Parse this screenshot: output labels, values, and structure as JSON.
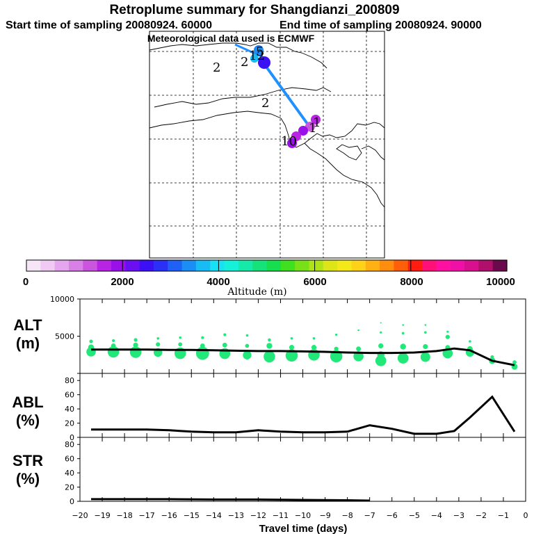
{
  "header": {
    "title": "Retroplume summary for Shangdianzi_200809",
    "start": "Start time of sampling 20080924. 60000",
    "end": "End time of sampling 20080924. 90000",
    "met": "Meteorological data used is ECMWF"
  },
  "colors": {
    "alt_dots": "#22e87a",
    "line": "#000000",
    "track": "#1e90ff",
    "altitude_scale": [
      "#f6e4f7",
      "#efcaf2",
      "#e4a6ec",
      "#d880e6",
      "#cc55e0",
      "#b824e4",
      "#9910e8",
      "#6a10f0",
      "#3c10f5",
      "#2a30f5",
      "#1f60f5",
      "#1b8ef5",
      "#18bcf5",
      "#18e0f5",
      "#17f0d8",
      "#16eaa8",
      "#15e27a",
      "#16de4e",
      "#3ee020",
      "#78e018",
      "#aee318",
      "#dde418",
      "#f5e81a",
      "#ffd21a",
      "#ffb012",
      "#ff8d0e",
      "#ff5e0a",
      "#ff1c10",
      "#ff1078",
      "#ff10a0",
      "#f010a8",
      "#d8108e",
      "#b0106c",
      "#6a0a4c"
    ]
  },
  "map": {
    "labels": [
      "2",
      "2",
      "2",
      "1",
      "1",
      "10",
      "12",
      "5"
    ]
  },
  "colorbar": {
    "title": "Altitude (m)",
    "ticks": [
      "0",
      "2000",
      "4000",
      "6000",
      "8000",
      "10000"
    ]
  },
  "panels": {
    "alt": {
      "label_line1": "ALT",
      "label_line2": "(m)"
    },
    "abl": {
      "label_line1": "ABL",
      "label_line2": "(%)"
    },
    "str": {
      "label_line1": "STR",
      "label_line2": "(%)"
    },
    "xlabel": "Travel time (days)"
  },
  "chart_data": [
    {
      "type": "scatter",
      "title": "ALT",
      "ylabel": "ALT (m)",
      "xlabel": "Travel time (days)",
      "xlim": [
        -20,
        0
      ],
      "ylim": [
        0,
        10000
      ],
      "y_ticks": [
        0,
        5000,
        10000
      ],
      "y_tick_labels": [
        "10000",
        "5000"
      ],
      "mean_line": {
        "x": [
          -19.5,
          -18,
          -17,
          -16,
          -15,
          -14,
          -13,
          -12,
          -11,
          -10,
          -9,
          -8,
          -7,
          -6,
          -5,
          -4,
          -3.2,
          -2.5,
          -1.5,
          -0.5
        ],
        "y": [
          3200,
          3200,
          3200,
          3150,
          3150,
          3100,
          3050,
          3000,
          3000,
          2950,
          2900,
          2800,
          2750,
          2750,
          2800,
          3000,
          3350,
          3100,
          1700,
          1100
        ]
      },
      "points": [
        {
          "x": -19.5,
          "y": 2900,
          "s": 2.6
        },
        {
          "x": -19.5,
          "y": 3500,
          "s": 1.6
        },
        {
          "x": -19.5,
          "y": 4300,
          "s": 1.0
        },
        {
          "x": -18.5,
          "y": 2900,
          "s": 3.2
        },
        {
          "x": -18.5,
          "y": 3700,
          "s": 1.3
        },
        {
          "x": -18.5,
          "y": 4400,
          "s": 0.8
        },
        {
          "x": -17.5,
          "y": 2850,
          "s": 3.2
        },
        {
          "x": -17.5,
          "y": 3800,
          "s": 1.4
        },
        {
          "x": -17.5,
          "y": 4500,
          "s": 1.0
        },
        {
          "x": -16.5,
          "y": 2800,
          "s": 2.4
        },
        {
          "x": -16.5,
          "y": 3900,
          "s": 1.2
        },
        {
          "x": -16.5,
          "y": 4700,
          "s": 0.7
        },
        {
          "x": -15.5,
          "y": 2700,
          "s": 3.2
        },
        {
          "x": -15.5,
          "y": 3900,
          "s": 1.1
        },
        {
          "x": -15.5,
          "y": 4800,
          "s": 0.7
        },
        {
          "x": -14.5,
          "y": 2700,
          "s": 3.6
        },
        {
          "x": -14.5,
          "y": 3700,
          "s": 1.3
        },
        {
          "x": -14.5,
          "y": 4800,
          "s": 0.8
        },
        {
          "x": -13.5,
          "y": 2650,
          "s": 3.0
        },
        {
          "x": -13.5,
          "y": 3800,
          "s": 1.3
        },
        {
          "x": -13.5,
          "y": 5200,
          "s": 0.8
        },
        {
          "x": -12.5,
          "y": 2450,
          "s": 2.4
        },
        {
          "x": -12.5,
          "y": 3700,
          "s": 1.1
        },
        {
          "x": -12.5,
          "y": 5100,
          "s": 0.7
        },
        {
          "x": -11.5,
          "y": 2250,
          "s": 3.2
        },
        {
          "x": -11.5,
          "y": 3700,
          "s": 1.6
        },
        {
          "x": -11.5,
          "y": 4500,
          "s": 0.9
        },
        {
          "x": -10.5,
          "y": 2400,
          "s": 3.4
        },
        {
          "x": -10.5,
          "y": 3500,
          "s": 1.4
        },
        {
          "x": -10.5,
          "y": 4700,
          "s": 0.7
        },
        {
          "x": -9.5,
          "y": 2500,
          "s": 3.2
        },
        {
          "x": -9.5,
          "y": 3500,
          "s": 1.4
        },
        {
          "x": -9.5,
          "y": 4700,
          "s": 0.7
        },
        {
          "x": -8.5,
          "y": 2300,
          "s": 3.4
        },
        {
          "x": -8.5,
          "y": 3300,
          "s": 1.2
        },
        {
          "x": -8.5,
          "y": 5200,
          "s": 0.6
        },
        {
          "x": -7.5,
          "y": 2300,
          "s": 2.8
        },
        {
          "x": -7.5,
          "y": 3300,
          "s": 1.3
        },
        {
          "x": -7.5,
          "y": 5800,
          "s": 0.5
        },
        {
          "x": -6.5,
          "y": 1700,
          "s": 3.0
        },
        {
          "x": -6.5,
          "y": 2500,
          "s": 2.0
        },
        {
          "x": -6.5,
          "y": 3700,
          "s": 1.4
        },
        {
          "x": -6.5,
          "y": 5500,
          "s": 0.6
        },
        {
          "x": -6.5,
          "y": 6800,
          "s": 0.4
        },
        {
          "x": -5.5,
          "y": 2050,
          "s": 3.0
        },
        {
          "x": -5.5,
          "y": 3600,
          "s": 1.6
        },
        {
          "x": -5.5,
          "y": 5400,
          "s": 0.7
        },
        {
          "x": -5.5,
          "y": 6500,
          "s": 0.5
        },
        {
          "x": -4.5,
          "y": 2200,
          "s": 2.7
        },
        {
          "x": -4.5,
          "y": 3600,
          "s": 1.4
        },
        {
          "x": -4.5,
          "y": 5500,
          "s": 0.7
        },
        {
          "x": -4.5,
          "y": 6500,
          "s": 0.5
        },
        {
          "x": -3.5,
          "y": 2700,
          "s": 2.8
        },
        {
          "x": -3.5,
          "y": 3500,
          "s": 1.3
        },
        {
          "x": -3.5,
          "y": 4900,
          "s": 1.2
        },
        {
          "x": -3.5,
          "y": 5600,
          "s": 0.6
        },
        {
          "x": -2.5,
          "y": 2800,
          "s": 2.3
        },
        {
          "x": -2.5,
          "y": 3300,
          "s": 1.5
        },
        {
          "x": -2.5,
          "y": 4300,
          "s": 0.7
        },
        {
          "x": -1.5,
          "y": 1700,
          "s": 1.8
        },
        {
          "x": -1.5,
          "y": 2200,
          "s": 1.0
        },
        {
          "x": -0.5,
          "y": 900,
          "s": 1.7
        },
        {
          "x": -0.5,
          "y": 1500,
          "s": 1.1
        }
      ]
    },
    {
      "type": "line",
      "title": "ABL",
      "ylabel": "ABL (%)",
      "xlim": [
        -20,
        0
      ],
      "ylim": [
        0,
        90
      ],
      "y_ticks": [
        0,
        20,
        40,
        60,
        80
      ],
      "x": [
        -19.5,
        -18,
        -17,
        -16,
        -15,
        -14,
        -13,
        -12,
        -11,
        -10,
        -9,
        -8,
        -7,
        -6,
        -5,
        -4,
        -3.2,
        -2.5,
        -1.5,
        -0.5
      ],
      "y": [
        11,
        11,
        11,
        10,
        8,
        7,
        7,
        10,
        8,
        7,
        7,
        8,
        17,
        12,
        5,
        5,
        9,
        28,
        57,
        8
      ]
    },
    {
      "type": "line",
      "title": "STR",
      "ylabel": "STR (%)",
      "xlim": [
        -20,
        0
      ],
      "ylim": [
        0,
        90
      ],
      "y_ticks": [
        0,
        20,
        40,
        60,
        80
      ],
      "x": [
        -19.5,
        -18,
        -16,
        -14,
        -12,
        -10,
        -8,
        -7
      ],
      "y": [
        3,
        3,
        3,
        2.5,
        2.5,
        2,
        1.5,
        1
      ]
    }
  ]
}
